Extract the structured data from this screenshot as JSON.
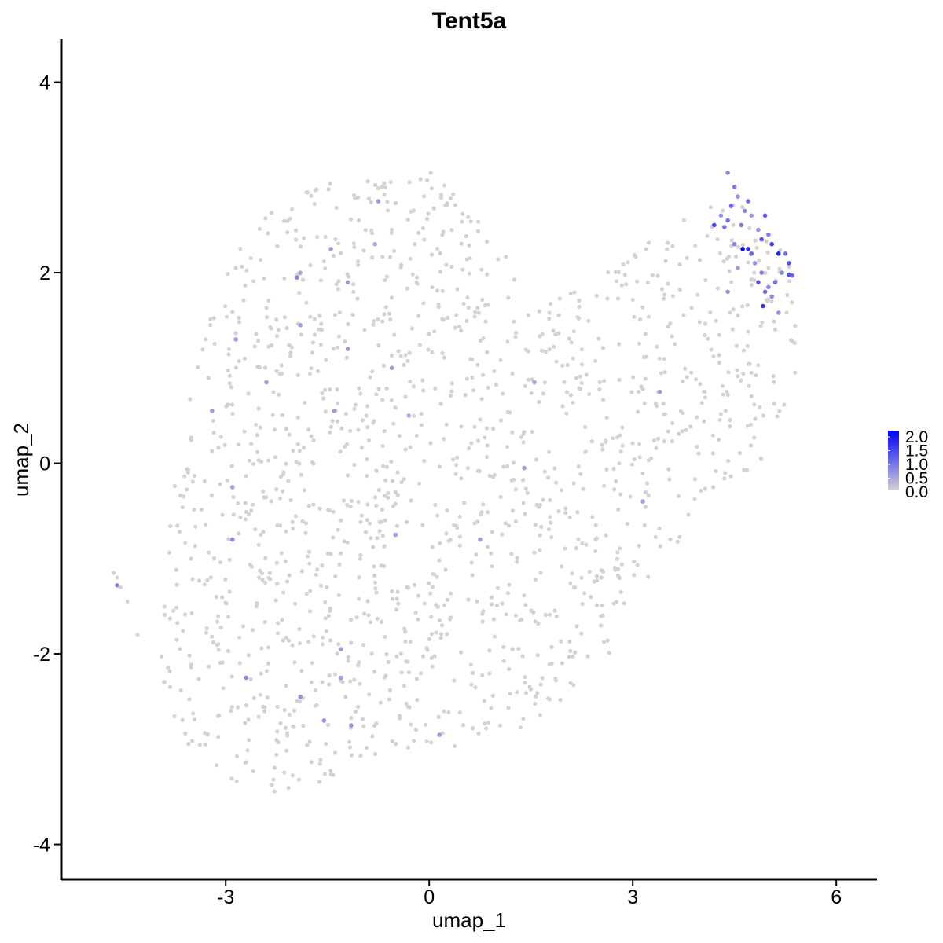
{
  "chart_data": {
    "type": "scatter",
    "title": "Tent5a",
    "xlabel": "umap_1",
    "ylabel": "umap_2",
    "xlim": [
      -5.4,
      6.6
    ],
    "ylim": [
      -4.35,
      4.45
    ],
    "x_ticks": [
      -3,
      0,
      3,
      6
    ],
    "y_ticks": [
      -4,
      -2,
      0,
      2,
      4
    ],
    "x_tick_labels": [
      "-3",
      "0",
      "3",
      "6"
    ],
    "y_tick_labels": [
      "-4",
      "-2",
      "0",
      "2",
      "4"
    ],
    "grid": false,
    "legend": {
      "placement": "right",
      "type": "colorbar",
      "min": 0,
      "max": 2.0,
      "labels": [
        "2.0",
        "1.5",
        "1.0",
        "0.5",
        "0.0"
      ],
      "low_color": "#d3d3d3",
      "high_color": "#0000ff"
    },
    "background_points": {
      "color": "#d3d3d3",
      "expression": 0,
      "approx_count": 1500,
      "region_outline": [
        [
          -4.0,
          -2.2
        ],
        [
          -3.6,
          -3.0
        ],
        [
          -2.8,
          -3.4
        ],
        [
          -2.1,
          -3.5
        ],
        [
          -1.4,
          -3.3
        ],
        [
          -0.5,
          -3.0
        ],
        [
          0.5,
          -3.0
        ],
        [
          1.3,
          -2.8
        ],
        [
          2.5,
          -2.3
        ],
        [
          3.0,
          -1.4
        ],
        [
          3.6,
          -0.9
        ],
        [
          4.2,
          -0.3
        ],
        [
          4.9,
          0.0
        ],
        [
          5.4,
          0.9
        ],
        [
          5.4,
          2.3
        ],
        [
          5.0,
          2.7
        ],
        [
          4.4,
          2.8
        ],
        [
          3.5,
          2.5
        ],
        [
          2.6,
          2.0
        ],
        [
          1.6,
          1.6
        ],
        [
          1.2,
          2.2
        ],
        [
          0.7,
          2.7
        ],
        [
          0.0,
          3.1
        ],
        [
          -0.8,
          3.0
        ],
        [
          -1.8,
          2.9
        ],
        [
          -2.6,
          2.6
        ],
        [
          -3.2,
          1.6
        ],
        [
          -3.6,
          0.6
        ],
        [
          -3.8,
          -0.4
        ],
        [
          -3.9,
          -1.4
        ]
      ],
      "extra_points": [
        [
          -4.6,
          -1.2
        ],
        [
          -4.65,
          -1.15
        ],
        [
          -4.55,
          -1.3
        ],
        [
          -4.45,
          -1.45
        ],
        [
          -4.3,
          -1.8
        ]
      ]
    },
    "expressed_points": [
      {
        "x": 4.4,
        "y": 3.05,
        "value": 0.7
      },
      {
        "x": 4.5,
        "y": 2.9,
        "value": 0.8
      },
      {
        "x": 4.55,
        "y": 2.8,
        "value": 0.6
      },
      {
        "x": 4.45,
        "y": 2.7,
        "value": 1.0
      },
      {
        "x": 4.7,
        "y": 2.75,
        "value": 0.9
      },
      {
        "x": 4.65,
        "y": 2.65,
        "value": 0.7
      },
      {
        "x": 4.3,
        "y": 2.6,
        "value": 0.6
      },
      {
        "x": 4.4,
        "y": 2.55,
        "value": 0.9
      },
      {
        "x": 4.6,
        "y": 2.5,
        "value": 0.8
      },
      {
        "x": 4.75,
        "y": 2.6,
        "value": 0.5
      },
      {
        "x": 4.95,
        "y": 2.6,
        "value": 1.1
      },
      {
        "x": 4.2,
        "y": 2.5,
        "value": 1.3
      },
      {
        "x": 4.35,
        "y": 2.48,
        "value": 0.9
      },
      {
        "x": 4.85,
        "y": 2.45,
        "value": 0.6
      },
      {
        "x": 5.0,
        "y": 2.4,
        "value": 0.8
      },
      {
        "x": 4.9,
        "y": 2.35,
        "value": 1.2
      },
      {
        "x": 5.05,
        "y": 2.3,
        "value": 1.4
      },
      {
        "x": 4.5,
        "y": 2.3,
        "value": 0.7
      },
      {
        "x": 4.62,
        "y": 2.25,
        "value": 2.1
      },
      {
        "x": 4.7,
        "y": 2.25,
        "value": 1.6
      },
      {
        "x": 4.75,
        "y": 2.2,
        "value": 1.0
      },
      {
        "x": 5.15,
        "y": 2.2,
        "value": 1.7
      },
      {
        "x": 5.25,
        "y": 2.2,
        "value": 0.9
      },
      {
        "x": 5.3,
        "y": 2.1,
        "value": 1.2
      },
      {
        "x": 4.8,
        "y": 2.1,
        "value": 0.6
      },
      {
        "x": 4.9,
        "y": 2.0,
        "value": 0.8
      },
      {
        "x": 4.85,
        "y": 1.9,
        "value": 1.1
      },
      {
        "x": 5.1,
        "y": 1.9,
        "value": 0.9
      },
      {
        "x": 5.0,
        "y": 1.85,
        "value": 0.7
      },
      {
        "x": 4.95,
        "y": 1.8,
        "value": 1.0
      },
      {
        "x": 5.3,
        "y": 1.98,
        "value": 1.2
      },
      {
        "x": 5.35,
        "y": 1.97,
        "value": 1.0
      },
      {
        "x": 4.4,
        "y": 1.8,
        "value": 0.6
      },
      {
        "x": 5.05,
        "y": 1.75,
        "value": 0.7
      },
      {
        "x": 4.92,
        "y": 1.65,
        "value": 1.5
      },
      {
        "x": 5.15,
        "y": 1.58,
        "value": 0.6
      },
      {
        "x": 4.55,
        "y": 2.05,
        "value": 0.5
      },
      {
        "x": 5.2,
        "y": 2.0,
        "value": 0.7
      },
      {
        "x": -0.75,
        "y": 2.75,
        "value": 0.5
      },
      {
        "x": -1.45,
        "y": 2.25,
        "value": 0.5
      },
      {
        "x": -1.9,
        "y": 2.0,
        "value": 0.4
      },
      {
        "x": -1.95,
        "y": 1.95,
        "value": 0.7
      },
      {
        "x": -0.8,
        "y": 2.3,
        "value": 0.4
      },
      {
        "x": -1.2,
        "y": 1.9,
        "value": 0.5
      },
      {
        "x": -1.9,
        "y": 1.45,
        "value": 0.5
      },
      {
        "x": -2.85,
        "y": 1.3,
        "value": 0.5
      },
      {
        "x": -1.2,
        "y": 1.2,
        "value": 0.5
      },
      {
        "x": -0.55,
        "y": 1.0,
        "value": 0.5
      },
      {
        "x": -2.4,
        "y": 0.85,
        "value": 0.5
      },
      {
        "x": -1.4,
        "y": 0.55,
        "value": 0.5
      },
      {
        "x": -0.3,
        "y": 0.5,
        "value": 0.4
      },
      {
        "x": -3.2,
        "y": 0.55,
        "value": 0.5
      },
      {
        "x": 1.55,
        "y": 0.85,
        "value": 0.4
      },
      {
        "x": 3.4,
        "y": 0.75,
        "value": 0.5
      },
      {
        "x": 1.4,
        "y": -0.05,
        "value": 0.5
      },
      {
        "x": -2.9,
        "y": -0.25,
        "value": 0.5
      },
      {
        "x": 3.15,
        "y": -0.4,
        "value": 0.5
      },
      {
        "x": -0.5,
        "y": -0.75,
        "value": 0.5
      },
      {
        "x": 0.75,
        "y": -0.8,
        "value": 0.5
      },
      {
        "x": -2.9,
        "y": -0.8,
        "value": 0.7
      },
      {
        "x": -4.6,
        "y": -1.28,
        "value": 0.7
      },
      {
        "x": -1.3,
        "y": -1.95,
        "value": 0.5
      },
      {
        "x": -2.7,
        "y": -2.25,
        "value": 0.7
      },
      {
        "x": -1.3,
        "y": -2.25,
        "value": 0.5
      },
      {
        "x": -1.9,
        "y": -2.45,
        "value": 0.6
      },
      {
        "x": -1.55,
        "y": -2.7,
        "value": 0.6
      },
      {
        "x": -1.15,
        "y": -2.75,
        "value": 0.6
      },
      {
        "x": 0.15,
        "y": -2.85,
        "value": 0.5
      }
    ]
  }
}
